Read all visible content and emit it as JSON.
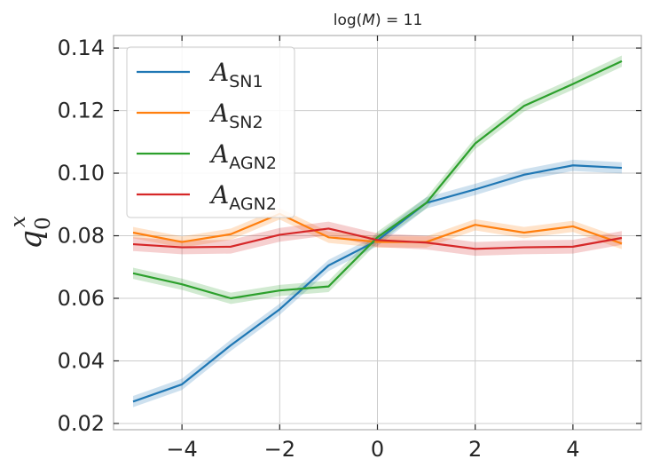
{
  "chart_data": {
    "type": "line",
    "title": "log(M) = 11",
    "title_parts": {
      "func": "log(",
      "var": "M",
      "rest": ") = 11"
    },
    "xlabel": "",
    "ylabel": {
      "base": "q",
      "sup": "x",
      "sub": "0"
    },
    "xlim": [
      -5.4,
      5.4
    ],
    "ylim": [
      0.018,
      0.144
    ],
    "xticks": [
      -4,
      -2,
      0,
      2,
      4
    ],
    "xtick_labels": [
      "−4",
      "−2",
      "0",
      "2",
      "4"
    ],
    "yticks": [
      0.02,
      0.04,
      0.06,
      0.08,
      0.1,
      0.12,
      0.14
    ],
    "ytick_labels": [
      "0.02",
      "0.04",
      "0.06",
      "0.08",
      "0.10",
      "0.12",
      "0.14"
    ],
    "grid": true,
    "legend_position": "top-left",
    "x": [
      -5,
      -4,
      -3,
      -2,
      -1,
      0,
      1,
      2,
      3,
      4,
      5
    ],
    "series": [
      {
        "name": "A_SN1",
        "label_main": "A",
        "label_sub": "SN1",
        "color": "#1f77b4",
        "values": [
          0.027,
          0.0325,
          0.045,
          0.0565,
          0.0705,
          0.0785,
          0.0905,
          0.0948,
          0.0995,
          0.1025,
          0.1017
        ],
        "band": 0.0018
      },
      {
        "name": "A_SN2",
        "label_main": "A",
        "label_sub": "SN2",
        "color": "#ff7f0e",
        "values": [
          0.081,
          0.078,
          0.0805,
          0.087,
          0.0795,
          0.078,
          0.078,
          0.0835,
          0.081,
          0.083,
          0.0775
        ],
        "band": 0.0018
      },
      {
        "name": "A_AGN2",
        "label_main": "A",
        "label_sub": "AGN2",
        "color": "#2ca02c",
        "values": [
          0.068,
          0.0645,
          0.06,
          0.0625,
          0.0638,
          0.0795,
          0.0905,
          0.1095,
          0.1215,
          0.1285,
          0.1358
        ],
        "band": 0.0018
      },
      {
        "name": "A_AGN2",
        "label_main": "A",
        "label_sub": "AGN2",
        "color": "#d62728",
        "values": [
          0.0773,
          0.0763,
          0.0765,
          0.0803,
          0.0823,
          0.0786,
          0.0778,
          0.0758,
          0.0763,
          0.0765,
          0.0793
        ],
        "band": 0.0022
      }
    ]
  }
}
